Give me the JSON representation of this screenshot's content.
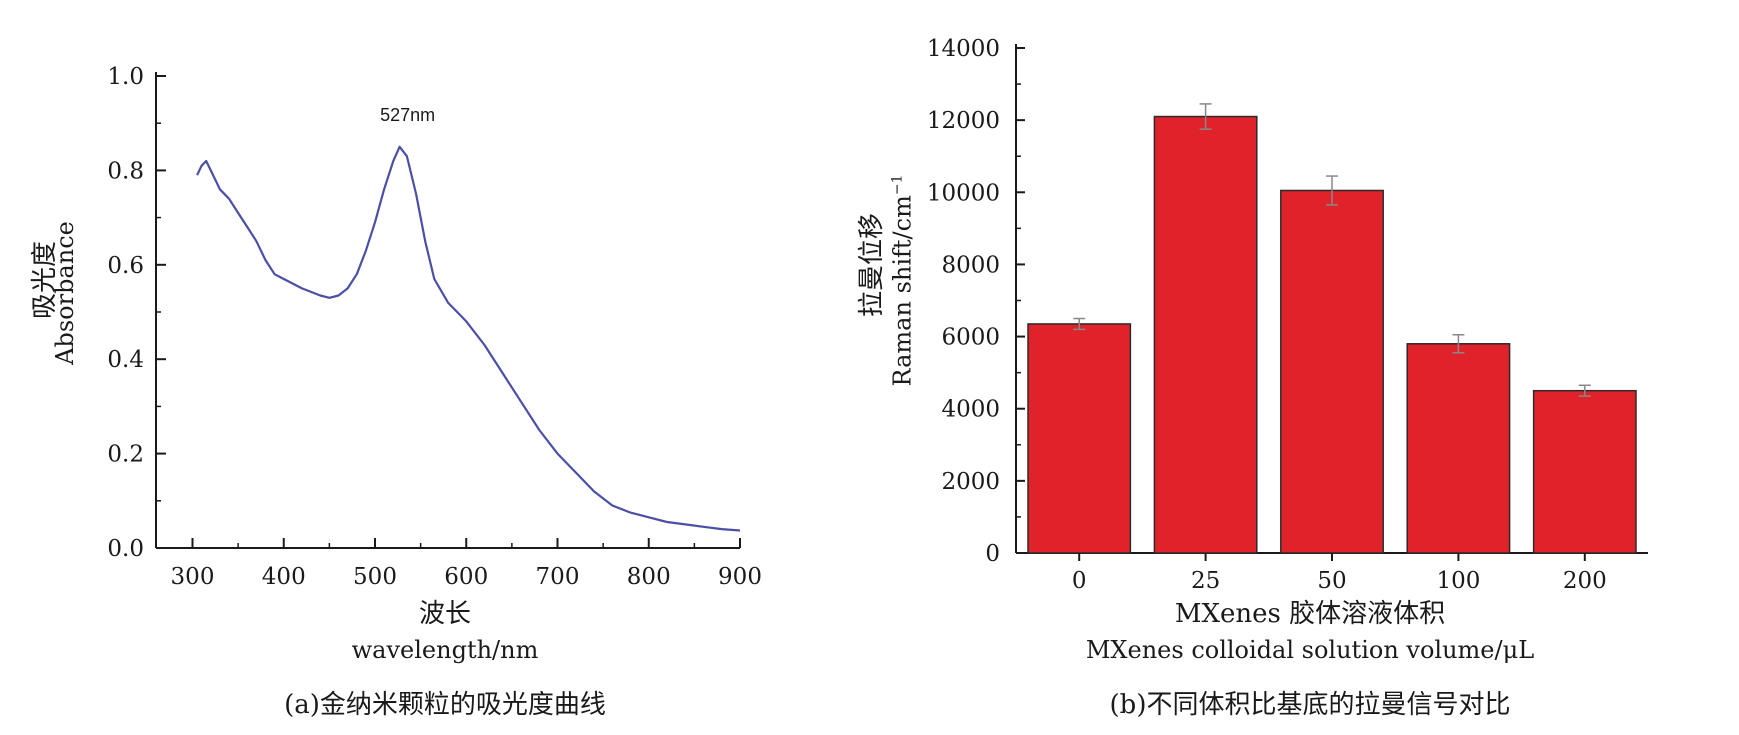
{
  "colors": {
    "line": "#4b4fa6",
    "bar": "#e0232a",
    "bar_edge": "#2a2a2a",
    "error_bar": "#888888"
  },
  "chart_data": [
    {
      "type": "line",
      "caption": "(a)金纳米颗粒的吸光度曲线",
      "xlabel_cn": "波长",
      "xlabel_en": "wavelength/nm",
      "ylabel_cn": "吸光度",
      "ylabel_en": "Absorbance",
      "annotation": "527nm",
      "xlim": [
        260,
        900
      ],
      "ylim": [
        0,
        1.0
      ],
      "xticks": [
        300,
        400,
        500,
        600,
        700,
        800,
        900
      ],
      "yticks": [
        "0.0",
        "0.2",
        "0.4",
        "0.6",
        "0.8",
        "1.0"
      ],
      "grid": false,
      "series": [
        {
          "x": [
            305,
            310,
            315,
            320,
            330,
            340,
            350,
            360,
            370,
            380,
            390,
            400,
            420,
            440,
            450,
            460,
            470,
            480,
            490,
            500,
            510,
            520,
            527,
            535,
            545,
            555,
            565,
            580,
            600,
            620,
            640,
            660,
            680,
            700,
            720,
            740,
            760,
            780,
            800,
            820,
            840,
            860,
            880,
            900
          ],
          "y": [
            0.79,
            0.81,
            0.82,
            0.8,
            0.76,
            0.74,
            0.71,
            0.68,
            0.65,
            0.61,
            0.58,
            0.57,
            0.55,
            0.535,
            0.53,
            0.535,
            0.55,
            0.58,
            0.63,
            0.69,
            0.76,
            0.82,
            0.85,
            0.83,
            0.75,
            0.65,
            0.57,
            0.52,
            0.48,
            0.43,
            0.37,
            0.31,
            0.25,
            0.2,
            0.16,
            0.12,
            0.09,
            0.075,
            0.065,
            0.055,
            0.05,
            0.045,
            0.04,
            0.037
          ]
        }
      ]
    },
    {
      "type": "bar",
      "caption": "(b)不同体积比基底的拉曼信号对比",
      "xlabel_cn": "MXenes 胶体溶液体积",
      "xlabel_en": "MXenes  colloidal  solution  volume/μL",
      "ylabel_cn": "拉曼位移",
      "ylabel_en_main": "Raman  shift/cm",
      "ylabel_en_sup": "−1",
      "categories": [
        "0",
        "25",
        "50",
        "100",
        "200"
      ],
      "values": [
        6350,
        12100,
        10050,
        5800,
        4500
      ],
      "errors": [
        150,
        350,
        400,
        250,
        150
      ],
      "ylim": [
        0,
        14000
      ],
      "yticks": [
        "0",
        "2000",
        "4000",
        "6000",
        "8000",
        "10000",
        "12000",
        "14000"
      ],
      "grid": false
    }
  ]
}
